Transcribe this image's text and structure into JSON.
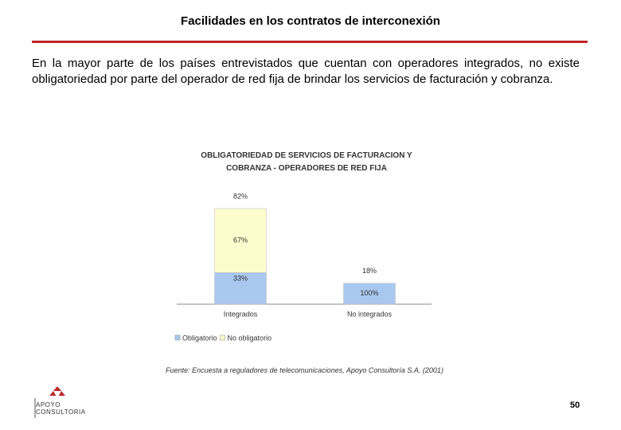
{
  "header": {
    "title": "Facilidades en los contratos de interconexión"
  },
  "body": "En la mayor parte de los países entrevistados que cuentan con operadores integrados, no existe obligatoriedad por parte del operador de red fija de brindar los servicios de facturación y cobranza.",
  "chart_data": {
    "type": "stacked_bar",
    "title": "OBLIGATORIEDAD DE SERVICIOS DE FACTURACION Y COBRANZA - OPERADORES DE RED FIJA",
    "categories": [
      "Integrados",
      "No integrados"
    ],
    "totals": {
      "values": [
        82,
        18
      ],
      "value_labels": [
        "82%",
        "18%"
      ]
    },
    "series": [
      {
        "name": "Obligatorio",
        "color": "#a9c8f0",
        "values": [
          33,
          100
        ],
        "value_labels": [
          "33%",
          "100%"
        ]
      },
      {
        "name": "No obligatorio",
        "color": "#fdfccc",
        "values": [
          67,
          null
        ],
        "value_labels": [
          "67%",
          null
        ]
      }
    ],
    "legend": "bottom-left"
  },
  "source": "Fuente: Encuesta a reguladores de telecomunicaciones, Apoyo Consultoría S.A. (2001)",
  "page_number": "50",
  "logo": {
    "line1": "APOYO",
    "line2": "CONSULTORIA"
  }
}
